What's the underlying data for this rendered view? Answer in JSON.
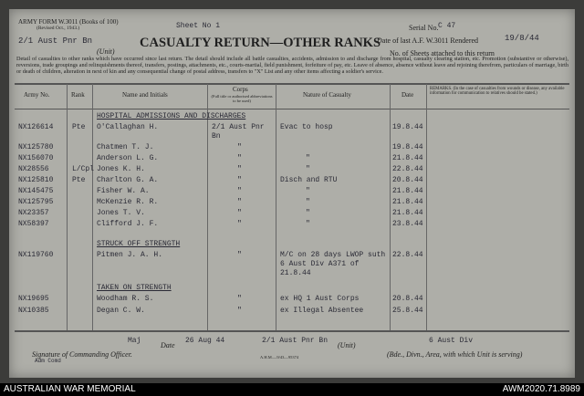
{
  "header": {
    "form_id": "ARMY FORM W.3011 (Books of 100)",
    "revised": "(Revised Oct., 1943.)",
    "sheet": "Sheet No 1",
    "unit": "2/1 Aust Pnr Bn",
    "unit_label": "(Unit)",
    "title": "CASUALTY RETURN—OTHER RANKS",
    "serial_label": "Serial No.",
    "serial": "C 47",
    "date_last_label": "Date of last A.F. W.3011 Rendered",
    "date_last": "19/8/44",
    "sheets_attached_label": "No. of Sheets attached to this return",
    "instructions": "Detail of casualties to other ranks which have occurred since last return. The detail should include all battle casualties, accidents, admission to and discharge from hospital, casualty clearing station, etc. Promotion (substantive or otherwise), reversions, trade groupings and relinquishments thereof, transfers, postings, attachments, etc., courts-martial, field punishment, forfeiture of pay, etc. Leave of absence, absence without leave and rejoining therefrom, particulars of marriage, birth or death of children, alteration in next of kin and any consequential change of postal address, transfers to \"X\" List and any other items affecting a soldier's service."
  },
  "table": {
    "columns": {
      "army_no": "Army No.",
      "rank": "Rank",
      "name": "Name and Initials",
      "corps": "Corps",
      "corps_note": "(Full title or authorised abbreviations to be used)",
      "nature": "Nature of Casualty",
      "date": "Date",
      "remarks": "REMARKS. (In the case of casualties from wounds or disease, any available information for communication to relatives should be stated.)"
    },
    "sections": [
      {
        "heading": "HOSPITAL ADMISSIONS AND DISCHARGES",
        "rows": [
          {
            "army_no": "NX126614",
            "rank": "Pte",
            "name": "O'Callaghan H.",
            "corps": "2/1 Aust Pnr Bn",
            "nature": "Evac to hosp",
            "date": "19.8.44"
          },
          {
            "army_no": "NX125780",
            "name": "Chatmen T. J.",
            "corps": "\"",
            "date": "19.8.44"
          },
          {
            "army_no": "NX156070",
            "name": "Anderson L. G.",
            "corps": "\"",
            "nature": "\"",
            "date": "21.8.44"
          },
          {
            "army_no": "NX28556",
            "rank": "L/Cpl",
            "name": "Jones K. H.",
            "corps": "\"",
            "nature": "\"",
            "date": "22.8.44"
          },
          {
            "army_no": "NX125810",
            "rank": "Pte",
            "name": "Charlton G. A.",
            "corps": "\"",
            "nature": "Disch and RTU",
            "date": "20.8.44"
          },
          {
            "army_no": "NX145475",
            "name": "Fisher W. A.",
            "corps": "\"",
            "nature": "\"",
            "date": "21.8.44"
          },
          {
            "army_no": "NX125795",
            "name": "McKenzie R. R.",
            "corps": "\"",
            "nature": "\"",
            "date": "21.8.44"
          },
          {
            "army_no": "NX23357",
            "name": "Jones T. V.",
            "corps": "\"",
            "nature": "\"",
            "date": "21.8.44"
          },
          {
            "army_no": "NX58397",
            "name": "Clifford J. F.",
            "corps": "\"",
            "nature": "\"",
            "date": "23.8.44"
          }
        ]
      },
      {
        "heading": "STRUCK OFF STRENGTH",
        "rows": [
          {
            "army_no": "NX119760",
            "name": "Pitmen J. A. H.",
            "corps": "\"",
            "nature": "M/C on 28 days LWOP suth 6 Aust Div A371 of 21.8.44",
            "date": "22.8.44"
          }
        ]
      },
      {
        "heading": "TAKEN ON STRENGTH",
        "rows": [
          {
            "army_no": "NX19695",
            "name": "Woodham R. S.",
            "corps": "\"",
            "nature": "ex HQ 1 Aust Corps",
            "date": "20.8.44"
          },
          {
            "army_no": "NX10385",
            "name": "Degan C. W.",
            "corps": "\"",
            "nature": "ex Illegal Absentee",
            "date": "25.8.44"
          }
        ]
      }
    ]
  },
  "footer": {
    "rank": "Maj",
    "date_label": "Date",
    "date": "26 Aug 44",
    "unit": "2/1 Aust Pnr Bn",
    "unit_label": "(Unit)",
    "formation": "6 Aust Div",
    "signature_label": "Signature of Commanding Officer.",
    "signature_note": "Adm Comd",
    "print_code": "A.H.M.—9/43—95374",
    "formation_label": "(Bde., Divn., Area, with which Unit is serving)"
  },
  "caption": {
    "left": "AUSTRALIAN WAR MEMORIAL",
    "right": "AWM2020.71.8989"
  }
}
